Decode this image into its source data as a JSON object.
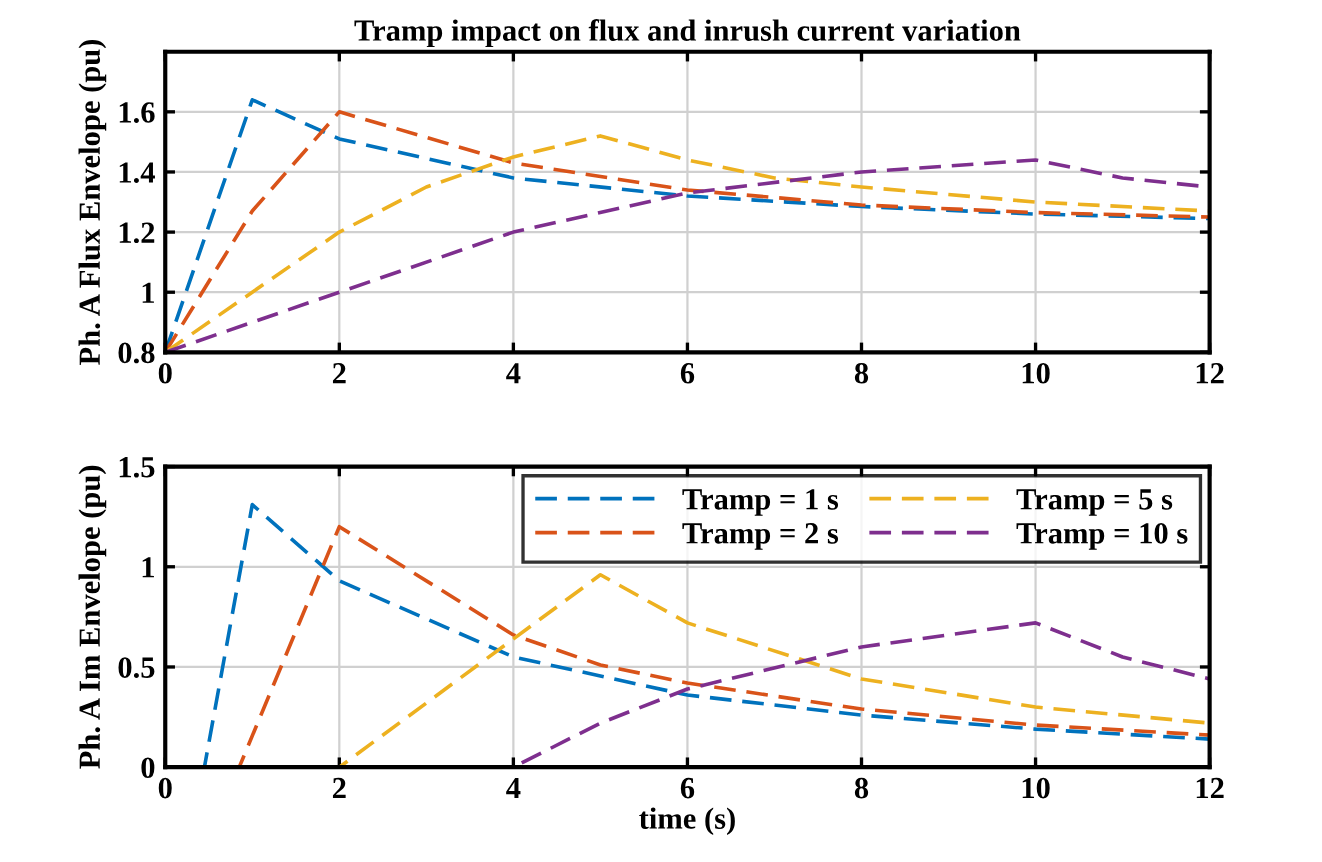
{
  "chart_data": [
    {
      "type": "line",
      "title": "Tramp impact on flux and inrush current variation",
      "ylabel": "Ph. A Flux Envelope (pu)",
      "xlim": [
        0,
        12
      ],
      "xticks": [
        0,
        2,
        4,
        6,
        8,
        10,
        12
      ],
      "ylim": [
        0.8,
        1.8
      ],
      "yticks": [
        0.8,
        1,
        1.2,
        1.4,
        1.6
      ],
      "grid": true,
      "line_style": "dashed",
      "legend": false,
      "series": [
        {
          "color": "#0072bd",
          "x": [
            0,
            1,
            2,
            4,
            6,
            8,
            10,
            12
          ],
          "values": [
            0.8,
            1.64,
            1.51,
            1.38,
            1.32,
            1.285,
            1.26,
            1.245
          ]
        },
        {
          "color": "#d95319",
          "x": [
            0,
            1,
            2,
            4,
            6,
            8,
            10,
            12
          ],
          "values": [
            0.8,
            1.27,
            1.6,
            1.43,
            1.34,
            1.29,
            1.265,
            1.25
          ]
        },
        {
          "color": "#edb120",
          "x": [
            0,
            1,
            2,
            3,
            4,
            5,
            6,
            7,
            8,
            10,
            12
          ],
          "values": [
            0.8,
            1.0,
            1.2,
            1.35,
            1.45,
            1.52,
            1.44,
            1.38,
            1.35,
            1.3,
            1.27
          ]
        },
        {
          "color": "#7e2f8e",
          "x": [
            0,
            2,
            4,
            6,
            8,
            10,
            11,
            12
          ],
          "values": [
            0.8,
            1.0,
            1.2,
            1.33,
            1.4,
            1.44,
            1.38,
            1.35
          ]
        }
      ]
    },
    {
      "type": "line",
      "xlabel": "time (s)",
      "ylabel": "Ph. A Im Envelope (pu)",
      "xlim": [
        0,
        12
      ],
      "xticks": [
        0,
        2,
        4,
        6,
        8,
        10,
        12
      ],
      "ylim": [
        0,
        1.5
      ],
      "yticks": [
        0,
        0.5,
        1,
        1.5
      ],
      "grid": true,
      "line_style": "dashed",
      "legend": "top right",
      "series": [
        {
          "name": "Tramp = 1 s",
          "color": "#0072bd",
          "x": [
            0,
            0.45,
            1,
            2,
            4,
            6,
            8,
            10,
            12
          ],
          "values": [
            0,
            0,
            1.31,
            0.93,
            0.55,
            0.36,
            0.26,
            0.19,
            0.14
          ]
        },
        {
          "name": "Tramp = 2 s",
          "color": "#d95319",
          "x": [
            0,
            0.85,
            2,
            4,
            5,
            6,
            8,
            10,
            12
          ],
          "values": [
            0,
            0,
            1.2,
            0.66,
            0.51,
            0.42,
            0.29,
            0.21,
            0.16
          ]
        },
        {
          "name": "Tramp = 5 s",
          "color": "#edb120",
          "x": [
            0,
            2,
            5,
            6,
            8,
            10,
            12
          ],
          "values": [
            0,
            0,
            0.96,
            0.72,
            0.44,
            0.3,
            0.22
          ]
        },
        {
          "name": "Tramp = 10 s",
          "color": "#7e2f8e",
          "x": [
            0,
            4,
            5,
            6,
            8,
            10,
            11,
            12
          ],
          "values": [
            0,
            0,
            0.22,
            0.39,
            0.6,
            0.72,
            0.55,
            0.44
          ]
        }
      ]
    }
  ]
}
